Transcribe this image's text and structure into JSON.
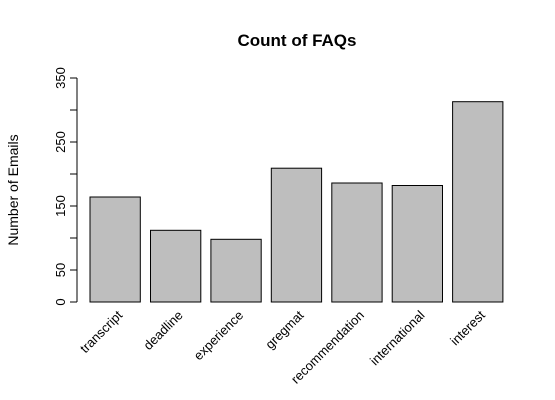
{
  "chart_data": {
    "type": "bar",
    "title": "Count of FAQs",
    "xlabel": "",
    "ylabel": "Number of Emails",
    "categories": [
      "transcript",
      "deadline",
      "experience",
      "gregmat",
      "recommendation",
      "international",
      "interest"
    ],
    "values": [
      164,
      112,
      98,
      209,
      186,
      182,
      313
    ],
    "ylim": [
      0,
      350
    ],
    "yticks": [
      0,
      50,
      150,
      250,
      350
    ],
    "yticks_minor": [
      100,
      200,
      300
    ],
    "grid": false,
    "legend": "none",
    "colors": {
      "bar_fill": "#bebebe",
      "bar_stroke": "#000000",
      "axis": "#000000"
    }
  }
}
